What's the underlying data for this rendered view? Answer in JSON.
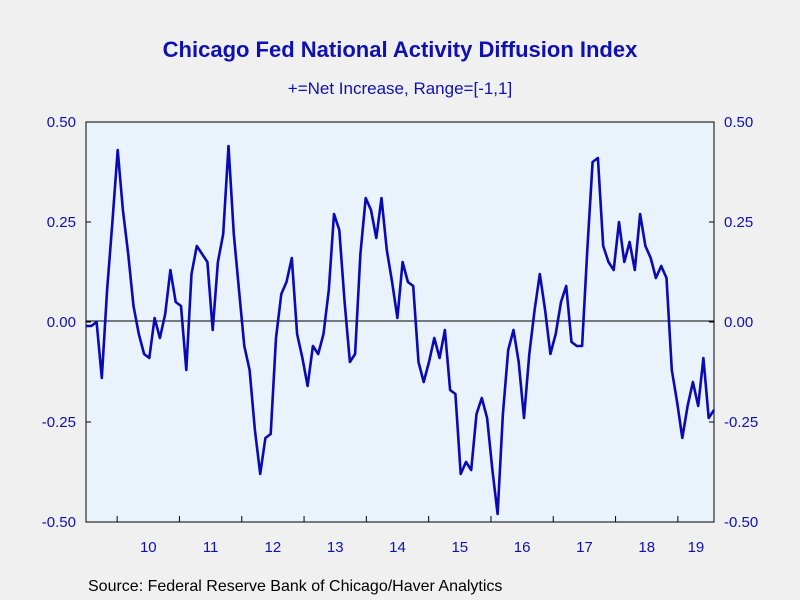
{
  "colors": {
    "background": "#f0f0f0",
    "plot_bg": "#eaf3fc",
    "series": "#0a0ab4",
    "text": "#1010b0"
  },
  "chart_data": {
    "type": "line",
    "title": "Chicago Fed National Activity Diffusion Index",
    "subtitle": "+=Net Increase, Range=[-1,1]",
    "source": "Source:  Federal Reserve Bank of Chicago/Haver Analytics",
    "xlabel": "",
    "ylabel": "",
    "ylim": [
      -0.5,
      0.5
    ],
    "y_ticks": [
      "0.50",
      "0.25",
      "0.00",
      "-0.25",
      "-0.50"
    ],
    "y_tick_values": [
      0.5,
      0.25,
      0,
      -0.25,
      -0.5
    ],
    "x_tick_labels": [
      "10",
      "11",
      "12",
      "13",
      "14",
      "15",
      "16",
      "17",
      "18",
      "19"
    ],
    "x_start_year": 2009.5,
    "x_end_year": 2019.58,
    "zero_line": true,
    "grid": false,
    "series": [
      {
        "name": "",
        "values": [
          -0.01,
          -0.01,
          0.0,
          -0.14,
          0.08,
          0.25,
          0.43,
          0.28,
          0.17,
          0.04,
          -0.03,
          -0.08,
          -0.09,
          0.01,
          -0.04,
          0.02,
          0.13,
          0.05,
          0.04,
          -0.12,
          0.12,
          0.19,
          0.17,
          0.15,
          -0.02,
          0.15,
          0.22,
          0.44,
          0.22,
          0.08,
          -0.06,
          -0.12,
          -0.27,
          -0.38,
          -0.29,
          -0.28,
          -0.04,
          0.07,
          0.1,
          0.16,
          -0.03,
          -0.09,
          -0.16,
          -0.06,
          -0.08,
          -0.03,
          0.08,
          0.27,
          0.23,
          0.05,
          -0.1,
          -0.08,
          0.17,
          0.31,
          0.28,
          0.21,
          0.31,
          0.18,
          0.1,
          0.01,
          0.15,
          0.1,
          0.09,
          -0.1,
          -0.15,
          -0.1,
          -0.04,
          -0.09,
          -0.02,
          -0.17,
          -0.18,
          -0.38,
          -0.35,
          -0.37,
          -0.23,
          -0.19,
          -0.24,
          -0.37,
          -0.48,
          -0.23,
          -0.07,
          -0.02,
          -0.1,
          -0.24,
          -0.08,
          0.03,
          0.12,
          0.03,
          -0.08,
          -0.03,
          0.05,
          0.09,
          -0.05,
          -0.06,
          -0.06,
          0.18,
          0.4,
          0.41,
          0.19,
          0.15,
          0.13,
          0.25,
          0.15,
          0.2,
          0.13,
          0.27,
          0.19,
          0.16,
          0.11,
          0.14,
          0.11,
          -0.12,
          -0.2,
          -0.29,
          -0.21,
          -0.15,
          -0.21,
          -0.09,
          -0.24,
          -0.22
        ]
      }
    ]
  }
}
